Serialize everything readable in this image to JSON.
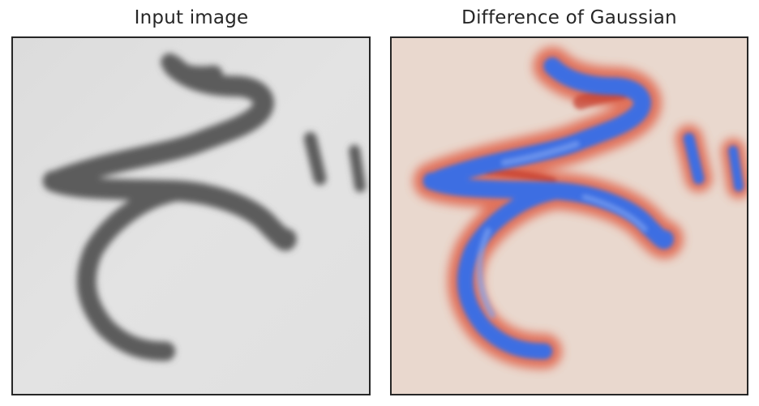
{
  "panels": [
    {
      "title": "Input image",
      "image": "grayscale-handwriting-stroke"
    },
    {
      "title": "Difference of Gaussian",
      "image": "difference-of-gaussian-coolwarm-map"
    }
  ],
  "colors": {
    "input_background": "#e1e1e1",
    "input_stroke": "#5a5a5a",
    "dog_background": "#ead8cf",
    "dog_positive": "#d9412e",
    "dog_negative": "#3a6fe0",
    "frame": "#262626",
    "title_text": "#262626"
  }
}
